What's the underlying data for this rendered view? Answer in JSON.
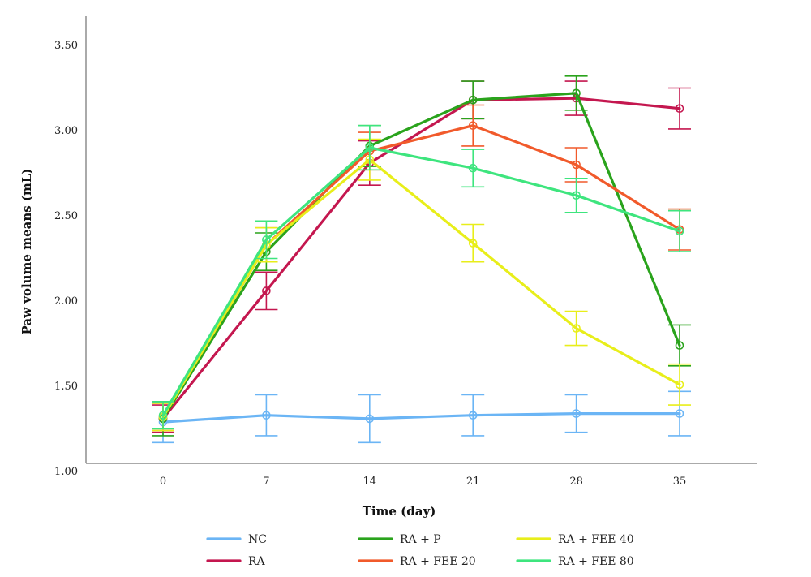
{
  "chart_data": {
    "type": "line",
    "title": "",
    "xlabel": "Time (day)",
    "ylabel": "Paw volume means (mL)",
    "x": [
      0,
      7,
      14,
      21,
      28,
      35
    ],
    "x_tick_labels": [
      "0",
      "7",
      "14",
      "21",
      "28",
      "35"
    ],
    "ylim": [
      1.0,
      3.6
    ],
    "y_ticks": [
      1.0,
      1.5,
      2.0,
      2.5,
      3.0,
      3.5
    ],
    "y_tick_labels": [
      "1.00",
      "1.50",
      "2.00",
      "2.50",
      "3.00",
      "3.50"
    ],
    "grid": false,
    "legend_position": "bottom",
    "series": [
      {
        "name": "NC",
        "color": "#6bb5f5",
        "values": [
          1.29,
          1.33,
          1.31,
          1.33,
          1.34,
          1.34
        ],
        "error": [
          0.12,
          0.12,
          0.14,
          0.12,
          0.11,
          0.13
        ]
      },
      {
        "name": "RA",
        "color": "#c4174f",
        "values": [
          1.31,
          2.06,
          2.81,
          3.18,
          3.19,
          3.13
        ],
        "error": [
          0.08,
          0.11,
          0.13,
          0.11,
          0.1,
          0.12
        ]
      },
      {
        "name": "RA + P",
        "color": "#2aa31c",
        "values": [
          1.31,
          2.29,
          2.91,
          3.18,
          3.22,
          1.74
        ],
        "error": [
          0.1,
          0.11,
          0.12,
          0.11,
          0.1,
          0.12
        ]
      },
      {
        "name": "RA + FEE 20",
        "color": "#f15a2b",
        "values": [
          1.32,
          2.33,
          2.88,
          3.03,
          2.8,
          2.42
        ],
        "error": [
          0.08,
          0.1,
          0.11,
          0.12,
          0.1,
          0.12
        ]
      },
      {
        "name": "RA + FEE 40",
        "color": "#e8ee1a",
        "values": [
          1.32,
          2.33,
          2.83,
          2.34,
          1.84,
          1.51
        ],
        "error": [
          0.08,
          0.1,
          0.12,
          0.11,
          0.1,
          0.12
        ]
      },
      {
        "name": "RA + FEE 80",
        "color": "#3ee57e",
        "values": [
          1.33,
          2.36,
          2.9,
          2.78,
          2.62,
          2.41
        ],
        "error": [
          0.08,
          0.11,
          0.13,
          0.11,
          0.1,
          0.12
        ]
      }
    ],
    "legend_order": [
      "NC",
      "RA + P",
      "RA + FEE 40",
      "RA",
      "RA + FEE 20",
      "RA + FEE 80"
    ]
  }
}
